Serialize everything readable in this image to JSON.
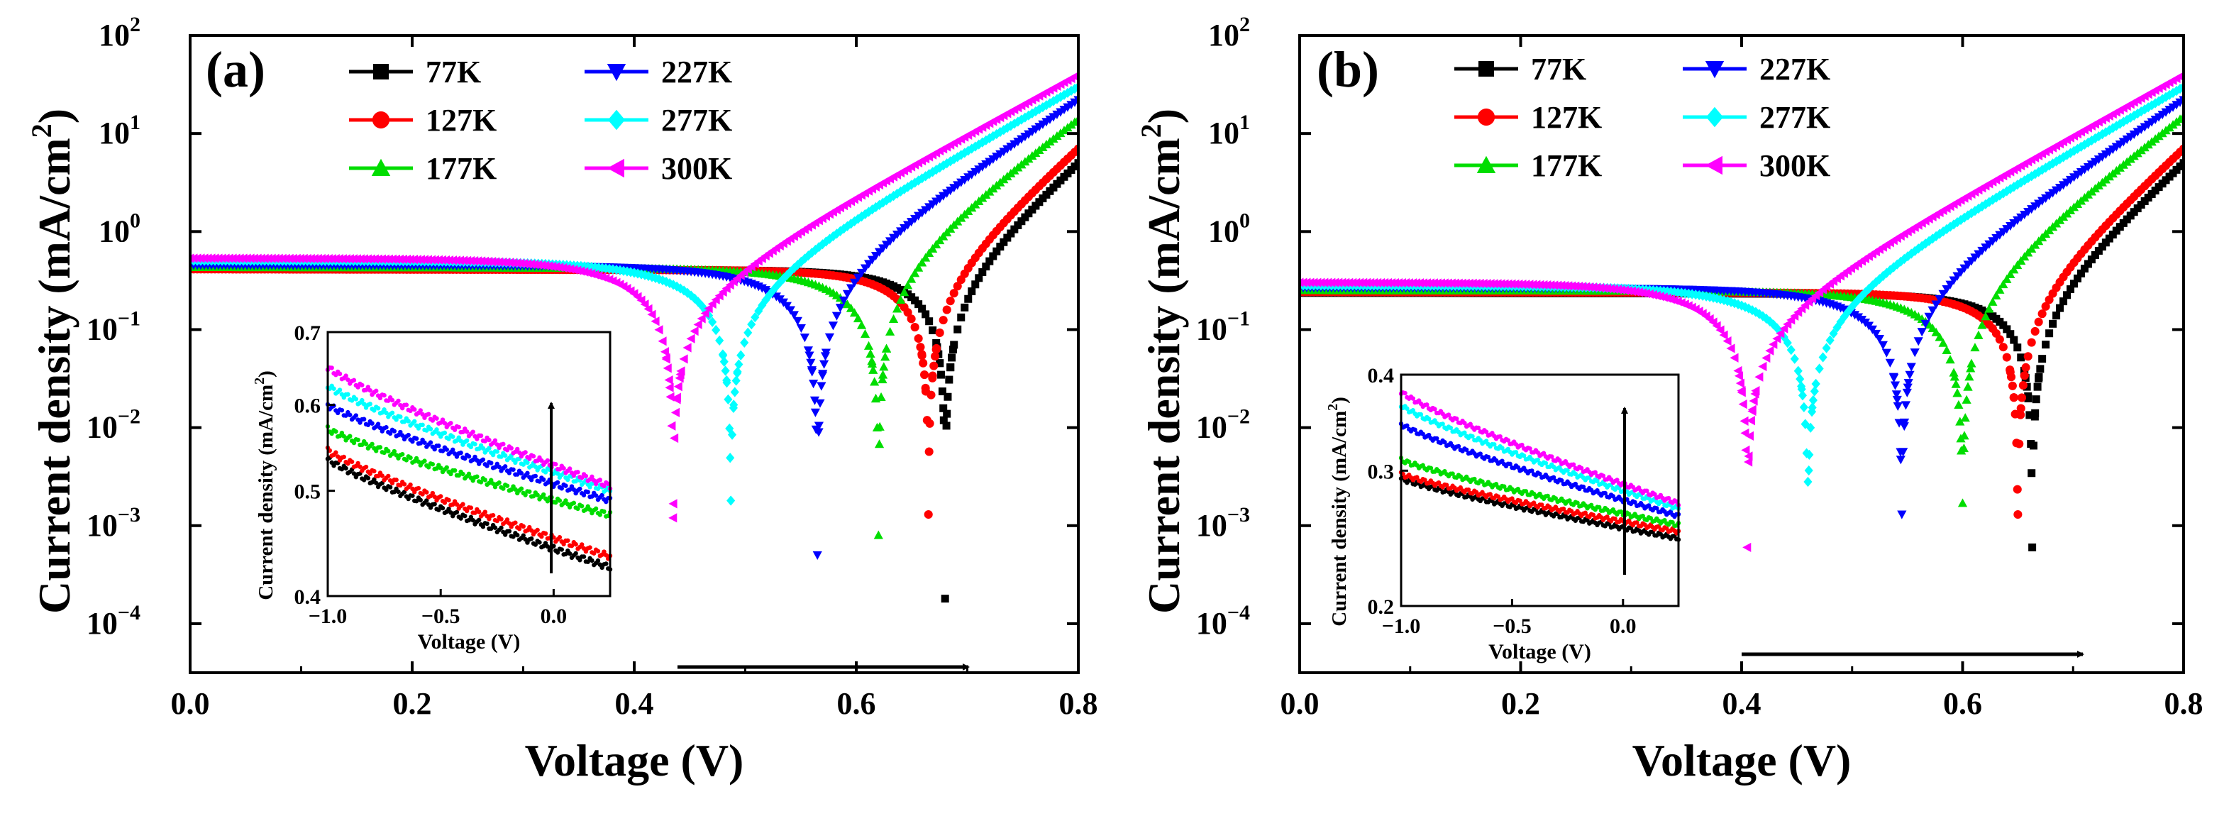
{
  "figure": {
    "colors": {
      "77K": "#000000",
      "127K": "#ff0000",
      "177K": "#00dd00",
      "227K": "#0000ff",
      "277K": "#00ffff",
      "300K": "#ff00ff"
    }
  },
  "chart_data": [
    {
      "panel": "(a)",
      "type": "scatter",
      "xlabel": "Voltage (V)",
      "ylabel": "Current density (mA/cm²)",
      "ylabel_main": "Current density (mA/cm",
      "ylabel_sup": "2",
      "ylabel_close": ")",
      "xlim": [
        0.0,
        0.8
      ],
      "ylim_log10": [
        -4.5,
        2
      ],
      "yscale": "log",
      "xticks": [
        "0.0",
        "0.2",
        "0.4",
        "0.6",
        "0.8"
      ],
      "yticks": [
        {
          "exp": -4,
          "base": "10",
          "sup": "−4"
        },
        {
          "exp": -3,
          "base": "10",
          "sup": "−3"
        },
        {
          "exp": -2,
          "base": "10",
          "sup": "−2"
        },
        {
          "exp": -1,
          "base": "10",
          "sup": "−1"
        },
        {
          "exp": 0,
          "base": "10",
          "sup": "0"
        },
        {
          "exp": 1,
          "base": "10",
          "sup": "1"
        },
        {
          "exp": 2,
          "base": "10",
          "sup": "2"
        }
      ],
      "legend_position": "top-left",
      "series": [
        {
          "name": "77K",
          "marker": "square",
          "jsc": 0.41,
          "voc": 0.68,
          "dip_min": 0.00018,
          "j_at_0p8": 5.0,
          "knee_width": 0.04
        },
        {
          "name": "127K",
          "marker": "circle",
          "jsc": 0.41,
          "voc": 0.665,
          "dip_min": 0.0013,
          "j_at_0p8": 7.0,
          "knee_width": 0.04
        },
        {
          "name": "177K",
          "marker": "triangle-up",
          "jsc": 0.43,
          "voc": 0.62,
          "dip_min": 0.0008,
          "j_at_0p8": 14.0,
          "knee_width": 0.05
        },
        {
          "name": "227K",
          "marker": "triangle-down",
          "jsc": 0.45,
          "voc": 0.565,
          "dip_min": 0.0005,
          "j_at_0p8": 22.0,
          "knee_width": 0.055
        },
        {
          "name": "277K",
          "marker": "diamond",
          "jsc": 0.5,
          "voc": 0.487,
          "dip_min": 0.0018,
          "j_at_0p8": 30.0,
          "knee_width": 0.06
        },
        {
          "name": "300K",
          "marker": "triangle-left",
          "jsc": 0.53,
          "voc": 0.435,
          "dip_min": 0.0012,
          "j_at_0p8": 40.0,
          "knee_width": 0.06
        }
      ],
      "inset": {
        "xlabel": "Voltage (V)",
        "ylabel": "Current density (mA/cm²)",
        "ylabel_main": "Current density (mA/cm",
        "ylabel_sup": "2",
        "ylabel_close": ")",
        "xlim": [
          -1.0,
          0.25
        ],
        "ylim": [
          0.4,
          0.7
        ],
        "yscale": "log",
        "xticks": [
          {
            "v": -1.0,
            "label": "−1.0"
          },
          {
            "v": -0.5,
            "label": "−0.5"
          },
          {
            "v": 0.0,
            "label": "0.0"
          }
        ],
        "yticks": [
          {
            "v": 0.4,
            "label": "0.4"
          },
          {
            "v": 0.5,
            "label": "0.5"
          },
          {
            "v": 0.6,
            "label": "0.6"
          },
          {
            "v": 0.7,
            "label": "0.7"
          }
        ],
        "series": [
          {
            "name": "77K",
            "start": 0.535,
            "end": 0.425
          },
          {
            "name": "127K",
            "start": 0.545,
            "end": 0.435
          },
          {
            "name": "177K",
            "start": 0.57,
            "end": 0.475
          },
          {
            "name": "227K",
            "start": 0.6,
            "end": 0.49
          },
          {
            "name": "277K",
            "start": 0.625,
            "end": 0.5
          },
          {
            "name": "300K",
            "start": 0.65,
            "end": 0.505
          }
        ]
      }
    },
    {
      "panel": "(b)",
      "type": "scatter",
      "xlabel": "Voltage (V)",
      "ylabel": "Current density (mA/cm²)",
      "ylabel_main": "Current density (mA/cm",
      "ylabel_sup": "2",
      "ylabel_close": ")",
      "xlim": [
        0.0,
        0.8
      ],
      "ylim_log10": [
        -4.5,
        2
      ],
      "yscale": "log",
      "xticks": [
        "0.0",
        "0.2",
        "0.4",
        "0.6",
        "0.8"
      ],
      "yticks": [
        {
          "exp": -4,
          "base": "10",
          "sup": "−4"
        },
        {
          "exp": -3,
          "base": "10",
          "sup": "−3"
        },
        {
          "exp": -2,
          "base": "10",
          "sup": "−2"
        },
        {
          "exp": -1,
          "base": "10",
          "sup": "−1"
        },
        {
          "exp": 0,
          "base": "10",
          "sup": "0"
        },
        {
          "exp": 1,
          "base": "10",
          "sup": "1"
        },
        {
          "exp": 2,
          "base": "10",
          "sup": "2"
        }
      ],
      "legend_position": "top-left",
      "series": [
        {
          "name": "77K",
          "marker": "square",
          "jsc": 0.235,
          "voc": 0.663,
          "dip_min": 0.0006,
          "j_at_0p8": 5.0,
          "knee_width": 0.04
        },
        {
          "name": "127K",
          "marker": "circle",
          "jsc": 0.24,
          "voc": 0.65,
          "dip_min": 0.0013,
          "j_at_0p8": 7.0,
          "knee_width": 0.04
        },
        {
          "name": "177K",
          "marker": "triangle-up",
          "jsc": 0.25,
          "voc": 0.6,
          "dip_min": 0.0017,
          "j_at_0p8": 15.0,
          "knee_width": 0.05
        },
        {
          "name": "227K",
          "marker": "triangle-down",
          "jsc": 0.265,
          "voc": 0.545,
          "dip_min": 0.0013,
          "j_at_0p8": 22.0,
          "knee_width": 0.055
        },
        {
          "name": "277K",
          "marker": "diamond",
          "jsc": 0.28,
          "voc": 0.46,
          "dip_min": 0.0028,
          "j_at_0p8": 30.0,
          "knee_width": 0.06
        },
        {
          "name": "300K",
          "marker": "triangle-left",
          "jsc": 0.3,
          "voc": 0.405,
          "dip_min": 0.0006,
          "j_at_0p8": 40.0,
          "knee_width": 0.06
        }
      ],
      "inset": {
        "xlabel": "Voltage (V)",
        "ylabel": "Current density (mA/cm²)",
        "ylabel_main": "Current density (mA/cm",
        "ylabel_sup": "2",
        "ylabel_close": ")",
        "xlim": [
          -1.0,
          0.25
        ],
        "ylim": [
          0.2,
          0.4
        ],
        "yscale": "log",
        "xticks": [
          {
            "v": -1.0,
            "label": "−1.0"
          },
          {
            "v": -0.5,
            "label": "−0.5"
          },
          {
            "v": 0.0,
            "label": "0.0"
          }
        ],
        "yticks": [
          {
            "v": 0.2,
            "label": "0.2"
          },
          {
            "v": 0.3,
            "label": "0.3"
          },
          {
            "v": 0.4,
            "label": "0.4"
          }
        ],
        "series": [
          {
            "name": "77K",
            "start": 0.293,
            "end": 0.245
          },
          {
            "name": "127K",
            "start": 0.297,
            "end": 0.25
          },
          {
            "name": "177K",
            "start": 0.31,
            "end": 0.255
          },
          {
            "name": "227K",
            "start": 0.345,
            "end": 0.262
          },
          {
            "name": "277K",
            "start": 0.365,
            "end": 0.268
          },
          {
            "name": "300K",
            "start": 0.38,
            "end": 0.272
          }
        ]
      }
    }
  ]
}
